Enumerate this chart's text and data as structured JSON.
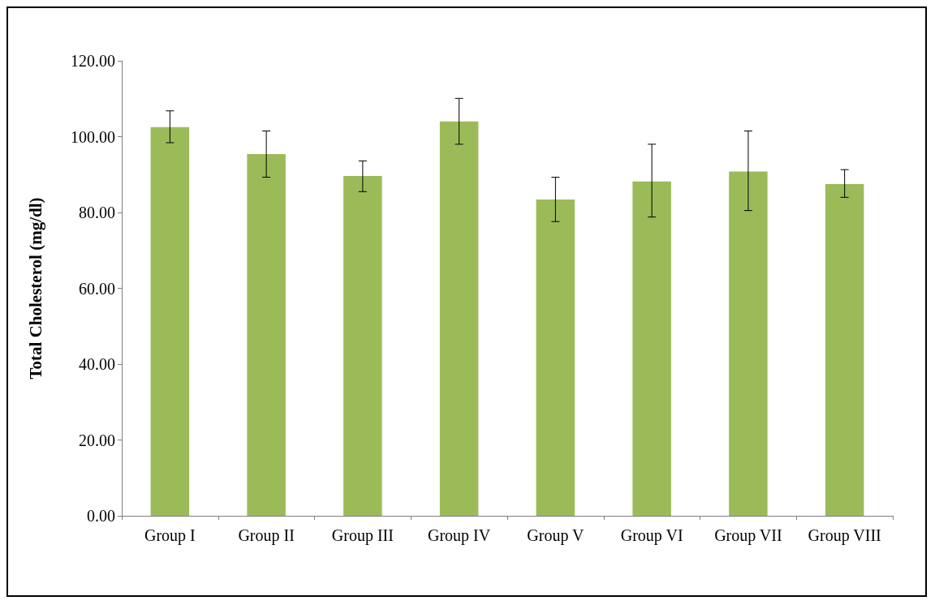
{
  "chart_data": {
    "type": "bar",
    "ylabel": "Total Cholesterol (mg/dl)",
    "categories": [
      "Group I",
      "Group II",
      "Group III",
      "Group IV",
      "Group V",
      "Group VI",
      "Group VII",
      "Group VIII"
    ],
    "values": [
      102.5,
      95.4,
      89.6,
      104.0,
      83.4,
      88.2,
      90.8,
      87.5
    ],
    "errors": [
      [
        98.4,
        106.8
      ],
      [
        89.3,
        101.5
      ],
      [
        85.5,
        93.6
      ],
      [
        98.0,
        110.1
      ],
      [
        77.6,
        89.3
      ],
      [
        78.8,
        98.0
      ],
      [
        80.5,
        101.5
      ],
      [
        84.0,
        91.3
      ]
    ],
    "color": "#9bbb59",
    "ylim": [
      0,
      120
    ],
    "yticks": [
      {
        "value": 0,
        "label": "0.00"
      },
      {
        "value": 20,
        "label": "20.00"
      },
      {
        "value": 40,
        "label": "40.00"
      },
      {
        "value": 60,
        "label": "60.00"
      },
      {
        "value": 80,
        "label": "80.00"
      },
      {
        "value": 100,
        "label": "100.00"
      },
      {
        "value": 120,
        "label": "120.00"
      }
    ],
    "grid": false
  }
}
